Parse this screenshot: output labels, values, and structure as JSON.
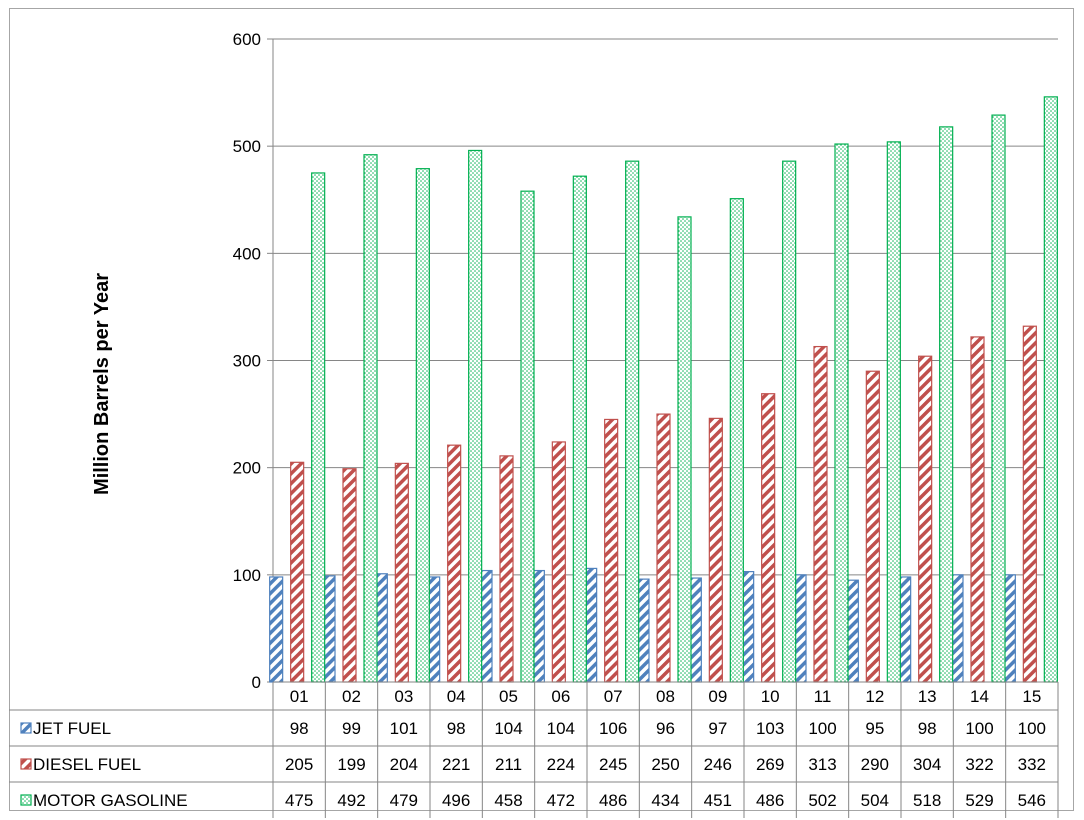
{
  "chart_data": {
    "type": "bar",
    "ylabel": "Million Barrels per Year",
    "xlabel": "",
    "title": "",
    "ylim": [
      0,
      600
    ],
    "yticks": [
      0,
      100,
      200,
      300,
      400,
      500,
      600
    ],
    "grid": true,
    "legend": "data table",
    "categories": [
      "01",
      "02",
      "03",
      "04",
      "05",
      "06",
      "07",
      "08",
      "09",
      "10",
      "11",
      "12",
      "13",
      "14",
      "15"
    ],
    "series": [
      {
        "name": "JET FUEL",
        "color": "#4f81bd",
        "pattern": "diagonal-stripes",
        "values": [
          98,
          99,
          101,
          98,
          104,
          104,
          106,
          96,
          97,
          103,
          100,
          95,
          98,
          100,
          100
        ]
      },
      {
        "name": "DIESEL FUEL",
        "color": "#c0504d",
        "pattern": "diagonal-stripes",
        "values": [
          205,
          199,
          204,
          221,
          211,
          224,
          245,
          250,
          246,
          269,
          313,
          290,
          304,
          322,
          332
        ]
      },
      {
        "name": "MOTOR GASOLINE",
        "color": "#00b050",
        "pattern": "dots",
        "values": [
          475,
          492,
          479,
          496,
          458,
          472,
          486,
          434,
          451,
          486,
          502,
          504,
          518,
          529,
          546
        ]
      }
    ]
  }
}
